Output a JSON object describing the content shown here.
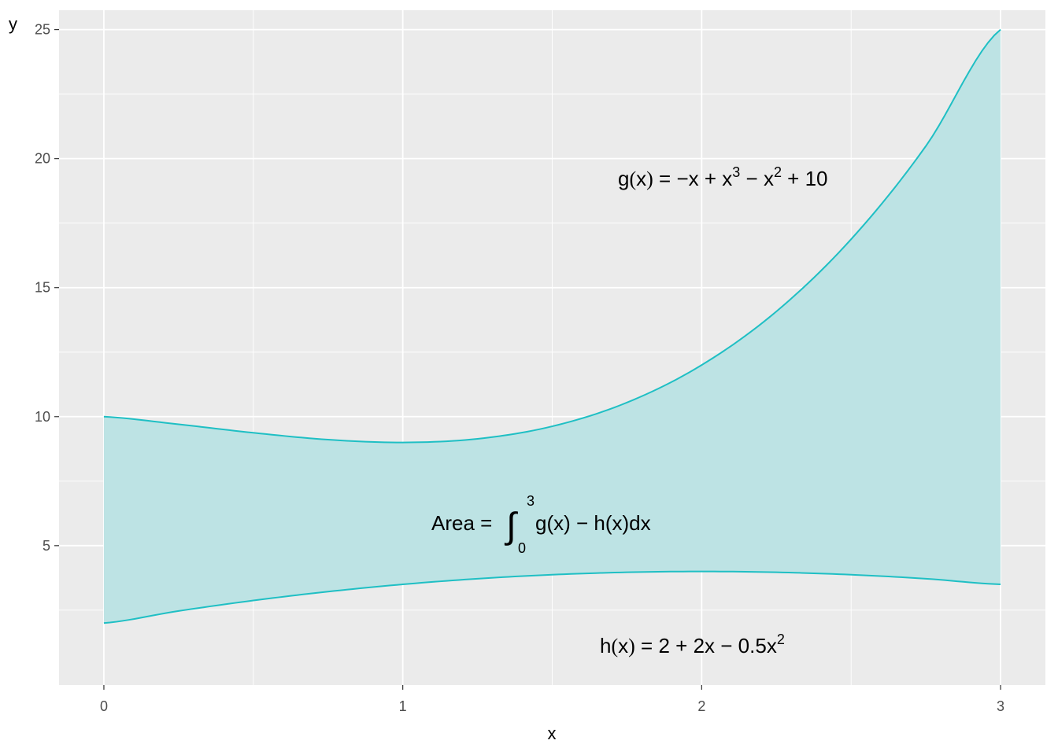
{
  "chart_data": {
    "type": "area",
    "xlabel": "x",
    "ylabel": "y",
    "xlim": [
      -0.15,
      3.15
    ],
    "ylim": [
      -0.4,
      25.75
    ],
    "x_ticks": [
      0,
      1,
      2,
      3
    ],
    "x_tick_labels": [
      "0",
      "1",
      "2",
      "3"
    ],
    "y_ticks": [
      5,
      10,
      15,
      20,
      25
    ],
    "y_tick_labels": [
      "5",
      "10",
      "15",
      "20",
      "25"
    ],
    "grid": true,
    "colors": {
      "panel": "#ebebeb",
      "grid": "#ffffff",
      "line": "#1fbfc4",
      "fill": "#bde3e4"
    },
    "x": [
      0,
      0.25,
      0.5,
      0.75,
      1,
      1.25,
      1.5,
      1.75,
      2,
      2.25,
      2.5,
      2.75,
      3
    ],
    "series": [
      {
        "values": [
          10,
          9.7031,
          9.375,
          9.1094,
          9,
          9.1406,
          9.625,
          10.5469,
          12,
          14.0781,
          16.875,
          20.4844,
          25
        ]
      },
      {
        "values": [
          2,
          2.4688,
          2.875,
          3.2188,
          3.5,
          3.7188,
          3.875,
          3.9688,
          4,
          3.9688,
          3.875,
          3.7188,
          3.5
        ]
      }
    ],
    "annotations": {
      "g": {
        "prefix": "g",
        "paren_open": "(",
        "var": "x",
        "paren_close": ")",
        "eq": " = ",
        "t1": "−x",
        "plus1": " + ",
        "t2": "x",
        "exp2": "3",
        "minus2": " − ",
        "t3": "x",
        "exp3": "2",
        "plus3": " + ",
        "t4": "10"
      },
      "h": {
        "prefix": "h",
        "paren_open": "(",
        "var": "x",
        "paren_close": ")",
        "eq": " = ",
        "t1": "2",
        "plus1": " + ",
        "t2": "2x",
        "minus2": " − ",
        "t3": "0.5x",
        "exp3": "2"
      },
      "area": {
        "label": "Area = ",
        "integral": "∫",
        "upper": "3",
        "lower": "0",
        "body": "g(x) − h(x)dx"
      }
    }
  }
}
